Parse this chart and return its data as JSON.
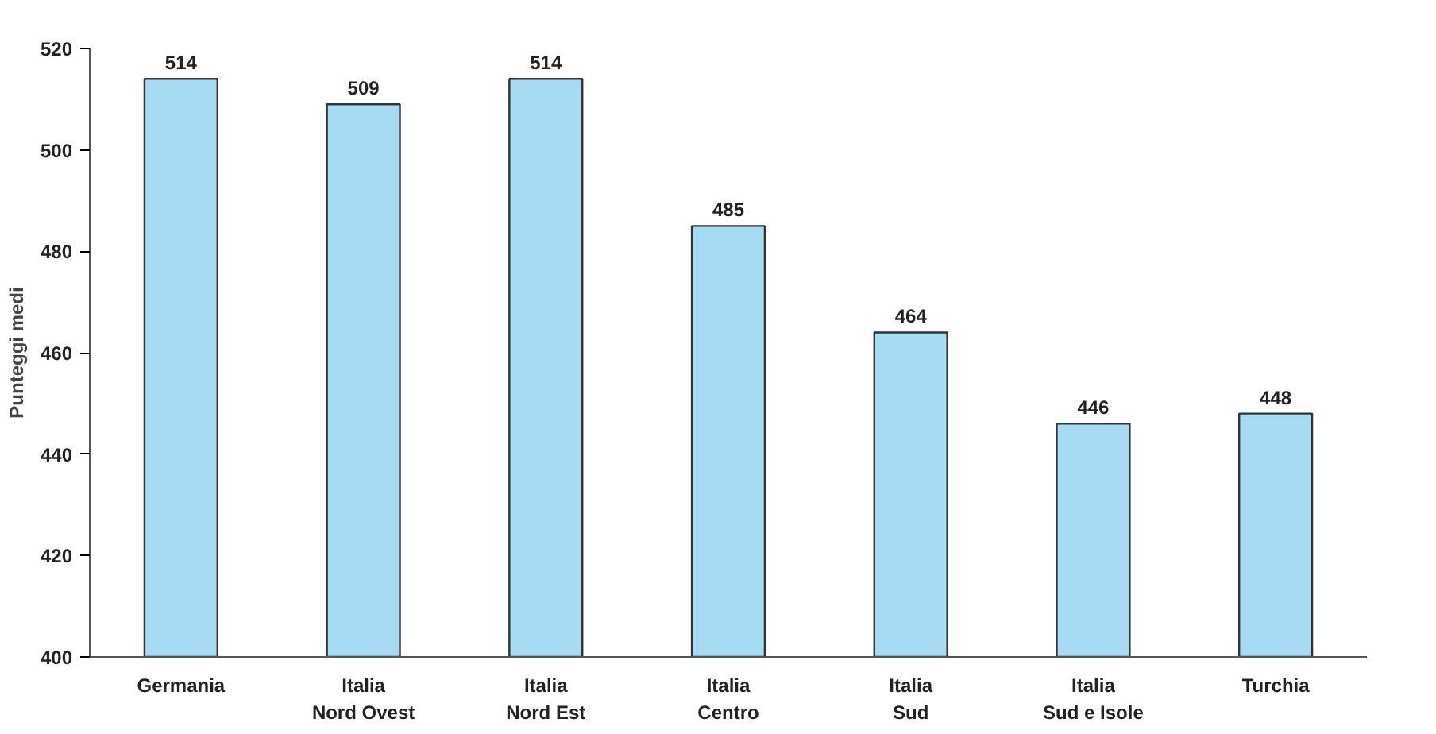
{
  "chart_data": {
    "type": "bar",
    "ylabel": "Punteggi medi",
    "categories": [
      "Germania",
      "Italia\nNord Ovest",
      "Italia\nNord Est",
      "Italia\nCentro",
      "Italia\nSud",
      "Italia\nSud e Isole",
      "Turchia"
    ],
    "values": [
      514,
      509,
      514,
      485,
      464,
      446,
      448
    ],
    "color": "#a6dbf3",
    "ylim": [
      400,
      520
    ],
    "yticks": [
      400,
      420,
      440,
      460,
      480,
      500,
      520
    ],
    "data_labels": true,
    "grid": false
  }
}
